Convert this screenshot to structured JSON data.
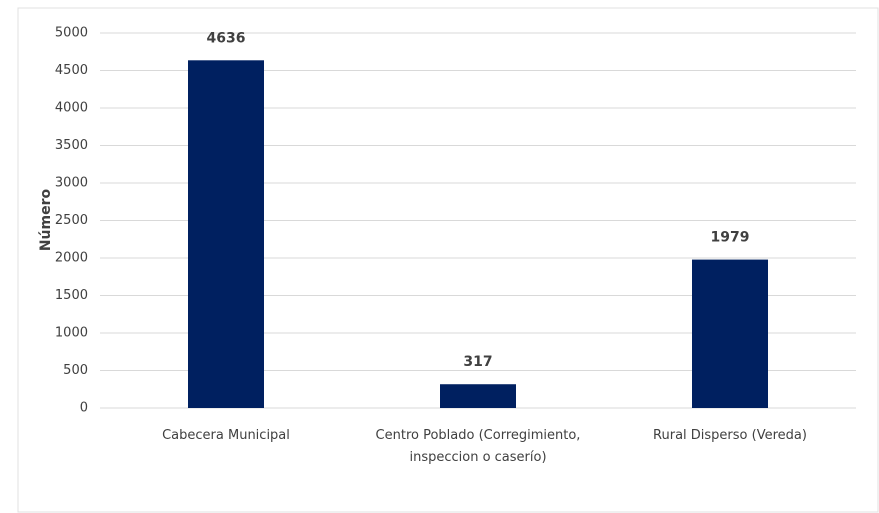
{
  "chart_data": {
    "type": "bar",
    "y_label": "Número",
    "categories": [
      "Cabecera Municipal",
      "Centro Poblado (Corregimiento, inspeccion o caserío)",
      "Rural Disperso (Vereda)"
    ],
    "values": [
      4636,
      317,
      1979
    ],
    "color": "#002060",
    "ylim": [
      0,
      5000
    ],
    "yticks": [
      0,
      500,
      1000,
      1500,
      2000,
      2500,
      3000,
      3500,
      4000,
      4500,
      5000
    ],
    "grid": true
  }
}
